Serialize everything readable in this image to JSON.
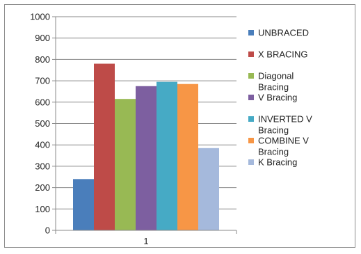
{
  "chart_data": {
    "type": "bar",
    "categories": [
      "1"
    ],
    "series": [
      {
        "name": "UNBRACED",
        "values": [
          240
        ],
        "color": "#4a7ebb"
      },
      {
        "name": "X BRACING",
        "values": [
          780
        ],
        "color": "#be4b48"
      },
      {
        "name": "Diagonal Bracing",
        "values": [
          615
        ],
        "color": "#98b954"
      },
      {
        "name": "V Bracing",
        "values": [
          675
        ],
        "color": "#7d5fa0"
      },
      {
        "name": "INVERTED V Bracing",
        "values": [
          695
        ],
        "color": "#46aac5"
      },
      {
        "name": "COMBINE V Bracing",
        "values": [
          685
        ],
        "color": "#f79646"
      },
      {
        "name": "K Bracing",
        "values": [
          385
        ],
        "color": "#a5b9dc"
      }
    ],
    "yticks": [
      "0",
      "100",
      "200",
      "300",
      "400",
      "500",
      "600",
      "700",
      "800",
      "900",
      "1000"
    ],
    "ylim": [
      0,
      1000
    ],
    "grid": true,
    "legend": "right",
    "title": "",
    "xlabel": "",
    "ylabel": ""
  }
}
